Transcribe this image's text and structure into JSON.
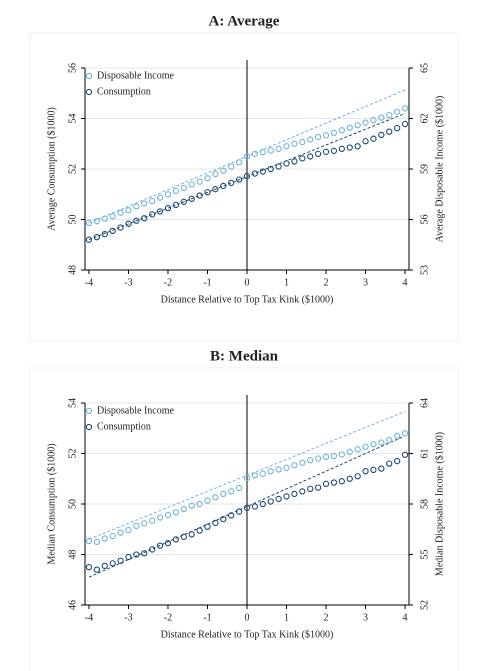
{
  "chart_data": [
    {
      "type": "scatter",
      "title": "A: Average",
      "x_label": "Distance Relative to Top Tax Kink ($1000)",
      "y_label": "Average Consumption ($1000)",
      "y2_label": "Average Disposable Income ($1000)",
      "x": [
        -4,
        -3.8,
        -3.6,
        -3.4,
        -3.2,
        -3,
        -2.8,
        -2.6,
        -2.4,
        -2.2,
        -2,
        -1.8,
        -1.6,
        -1.4,
        -1.2,
        -1,
        -0.8,
        -0.6,
        -0.4,
        -0.2,
        0,
        0.2,
        0.4,
        0.6,
        0.8,
        1,
        1.2,
        1.4,
        1.6,
        1.8,
        2,
        2.2,
        2.4,
        2.6,
        2.8,
        3,
        3.2,
        3.4,
        3.6,
        3.8,
        4
      ],
      "series": [
        {
          "name": "Disposable Income",
          "color": "#6fb3dd",
          "axis": "y2",
          "values": [
            55.8,
            55.9,
            56.05,
            56.2,
            56.4,
            56.55,
            56.78,
            56.95,
            57.1,
            57.3,
            57.5,
            57.7,
            57.88,
            58.08,
            58.25,
            58.45,
            58.7,
            58.9,
            59.15,
            59.4,
            59.75,
            59.9,
            60.0,
            60.1,
            60.2,
            60.35,
            60.5,
            60.6,
            60.75,
            60.9,
            61.0,
            61.15,
            61.3,
            61.45,
            61.6,
            61.75,
            61.9,
            62.05,
            62.2,
            62.4,
            62.6
          ]
        },
        {
          "name": "Consumption",
          "color": "#1b4a72",
          "values": [
            49.2,
            49.3,
            49.42,
            49.55,
            49.68,
            49.83,
            49.95,
            50.05,
            50.2,
            50.32,
            50.45,
            50.58,
            50.7,
            50.82,
            50.95,
            51.08,
            51.2,
            51.33,
            51.45,
            51.58,
            51.72,
            51.82,
            51.9,
            52.0,
            52.1,
            52.22,
            52.3,
            52.42,
            52.5,
            52.6,
            52.68,
            52.72,
            52.8,
            52.85,
            52.9,
            53.1,
            53.2,
            53.35,
            53.48,
            53.62,
            53.78
          ]
        }
      ],
      "fit_lines": [
        {
          "color": "#6fb3dd",
          "axis": "y2",
          "x": [
            -4,
            4
          ],
          "values": [
            55.8,
            63.7
          ]
        },
        {
          "color": "#1b4a72",
          "x": [
            -4,
            4
          ],
          "values": [
            49.2,
            54.2
          ]
        }
      ],
      "vline": 0,
      "xlim": [
        -4.1,
        4.1
      ],
      "xticks": [
        -4,
        -3,
        -2,
        -1,
        0,
        1,
        2,
        3,
        4
      ],
      "ylim": [
        48,
        56
      ],
      "yticks": [
        48,
        50,
        52,
        54,
        56
      ],
      "y2lim": [
        53,
        65
      ],
      "y2ticks": [
        53,
        56,
        59,
        62,
        65
      ],
      "grid": true,
      "legend": "top-left"
    },
    {
      "type": "scatter",
      "title": "B: Median",
      "x_label": "Distance Relative to Top Tax Kink ($1000)",
      "y_label": "Median Consumption ($1000)",
      "y2_label": "Median Disposable Income ($1000)",
      "x": [
        -4,
        -3.8,
        -3.6,
        -3.4,
        -3.2,
        -3,
        -2.8,
        -2.6,
        -2.4,
        -2.2,
        -2,
        -1.8,
        -1.6,
        -1.4,
        -1.2,
        -1,
        -0.8,
        -0.6,
        -0.4,
        -0.2,
        0,
        0.2,
        0.4,
        0.6,
        0.8,
        1,
        1.2,
        1.4,
        1.6,
        1.8,
        2,
        2.2,
        2.4,
        2.6,
        2.8,
        3,
        3.2,
        3.4,
        3.6,
        3.8,
        4
      ],
      "series": [
        {
          "name": "Disposable Income",
          "color": "#6fb3dd",
          "axis": "y2",
          "values": [
            55.8,
            55.75,
            55.95,
            56.1,
            56.3,
            56.45,
            56.7,
            56.85,
            57.0,
            57.2,
            57.35,
            57.5,
            57.7,
            57.9,
            58.0,
            58.2,
            58.4,
            58.6,
            58.75,
            58.95,
            59.55,
            59.7,
            59.8,
            59.95,
            60.05,
            60.15,
            60.3,
            60.45,
            60.6,
            60.7,
            60.8,
            60.85,
            60.95,
            61.1,
            61.25,
            61.4,
            61.55,
            61.65,
            61.8,
            62.05,
            62.2
          ]
        },
        {
          "name": "Consumption",
          "color": "#1b4a72",
          "values": [
            47.5,
            47.4,
            47.55,
            47.65,
            47.75,
            47.9,
            48.0,
            48.05,
            48.2,
            48.35,
            48.45,
            48.6,
            48.7,
            48.8,
            48.95,
            49.1,
            49.25,
            49.4,
            49.55,
            49.7,
            49.85,
            49.9,
            50.0,
            50.1,
            50.2,
            50.3,
            50.4,
            50.5,
            50.6,
            50.65,
            50.8,
            50.85,
            50.9,
            51.0,
            51.1,
            51.3,
            51.35,
            51.4,
            51.6,
            51.7,
            51.95
          ]
        }
      ],
      "fit_lines": [
        {
          "color": "#6fb3dd",
          "axis": "y2",
          "x": [
            -4,
            4
          ],
          "values": [
            55.9,
            63.5
          ]
        },
        {
          "color": "#1b4a72",
          "x": [
            -4,
            4
          ],
          "values": [
            47.1,
            52.7
          ]
        }
      ],
      "vline": 0,
      "xlim": [
        -4.1,
        4.1
      ],
      "xticks": [
        -4,
        -3,
        -2,
        -1,
        0,
        1,
        2,
        3,
        4
      ],
      "ylim": [
        46,
        54
      ],
      "yticks": [
        46,
        48,
        50,
        52,
        54
      ],
      "y2lim": [
        52,
        64
      ],
      "y2ticks": [
        52,
        55,
        58,
        61,
        64
      ],
      "grid": true,
      "legend": "top-left"
    }
  ]
}
